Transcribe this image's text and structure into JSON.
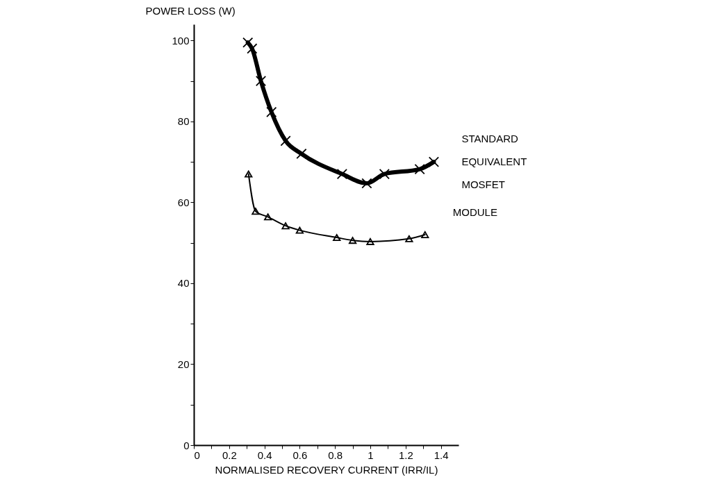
{
  "chart_data": {
    "type": "line",
    "xlabel": "NORMALISED RECOVERY CURRENT (IRR/IL)",
    "ylabel": "POWER LOSS (W)",
    "xlim": [
      0,
      1.5
    ],
    "ylim": [
      0,
      104
    ],
    "xticks": [
      0,
      {
        "value": 0.1,
        "label": null
      },
      0.2,
      {
        "value": 0.3,
        "label": null
      },
      0.4,
      {
        "value": 0.5,
        "label": null
      },
      0.6,
      {
        "value": 0.7,
        "label": null
      },
      0.8,
      {
        "value": 0.9,
        "label": null
      },
      1,
      {
        "value": 1.1,
        "label": null
      },
      1.2,
      {
        "value": 1.3,
        "label": null
      },
      1.4
    ],
    "yticks": [
      0,
      {
        "value": 10,
        "label": null
      },
      20,
      {
        "value": 30,
        "label": null
      },
      40,
      {
        "value": 50,
        "label": null
      },
      60,
      {
        "value": 70,
        "label": null
      },
      80,
      {
        "value": 90,
        "label": null
      },
      100
    ],
    "grid": false,
    "legend": false,
    "line_style": "solid",
    "series": [
      {
        "name": "STANDARD EQUIVALENT MOSFET",
        "color": "#000000",
        "marker": "cross",
        "x": [
          0.306,
          0.33,
          0.38,
          0.44,
          0.52,
          0.61,
          0.84,
          0.98,
          1.08,
          1.28,
          1.36
        ],
        "values": [
          99.5,
          98,
          90,
          82.3,
          75.2,
          72,
          67,
          64.7,
          67,
          68.2,
          70
        ]
      },
      {
        "name": "MODULE",
        "color": "#000000",
        "marker": "triangle",
        "x": [
          0.31,
          0.35,
          0.42,
          0.52,
          0.6,
          0.81,
          0.9,
          1.0,
          1.22,
          1.31
        ],
        "values": [
          67,
          57.8,
          56.4,
          54.2,
          53.1,
          51.3,
          50.6,
          50.3,
          51,
          52
        ]
      }
    ]
  }
}
